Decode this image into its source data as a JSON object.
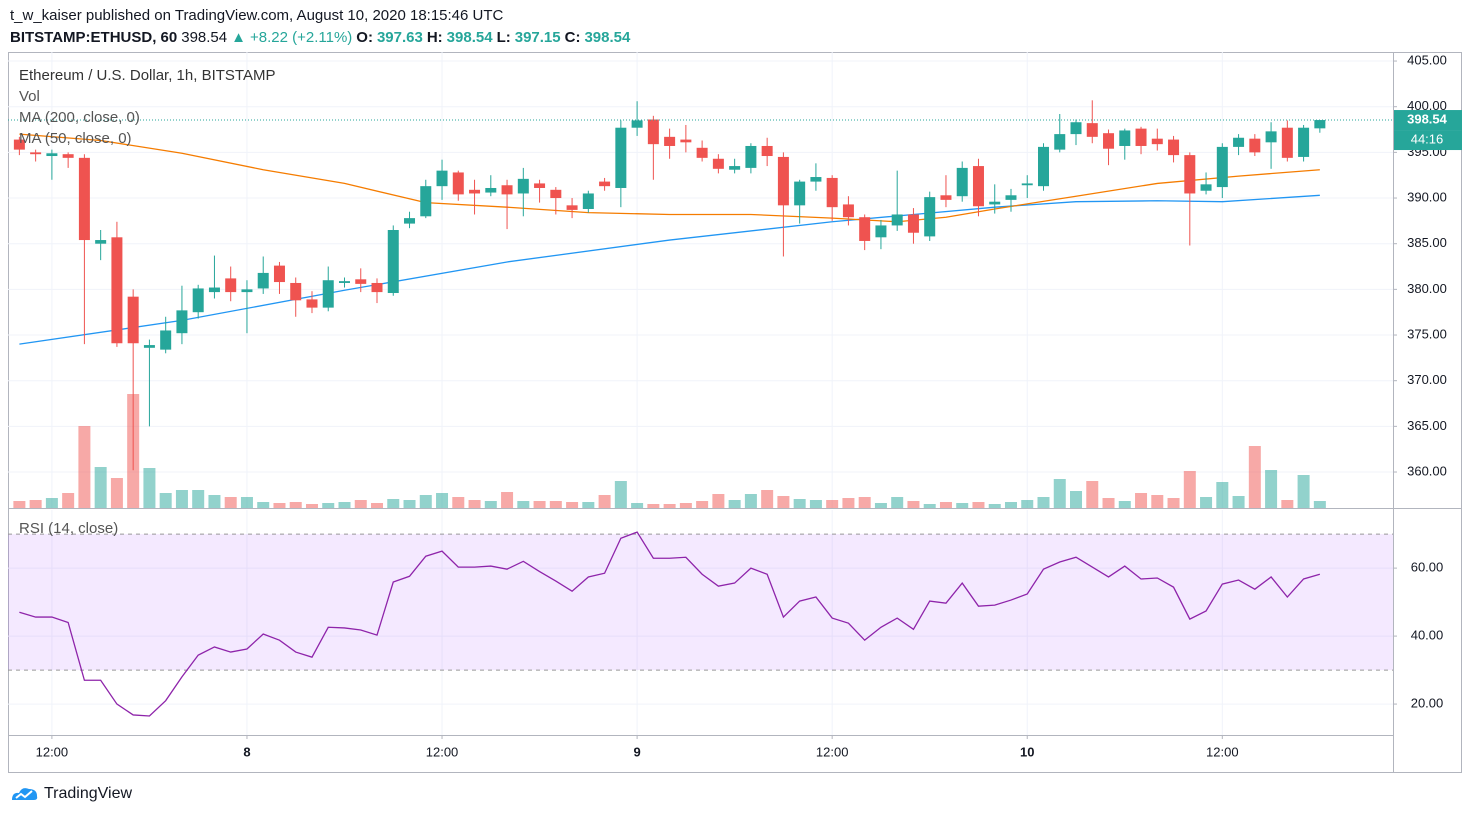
{
  "header": {
    "publisher": "t_w_kaiser published on TradingView.com, August 10, 2020 18:15:46 UTC",
    "symbol": "BITSTAMP:ETHUSD, 60",
    "change": "+8.22 (+2.11%)",
    "open_label": "O:",
    "high_label": "H:",
    "low_label": "L:",
    "close_label": "C:"
  },
  "chart_data": {
    "type": "candlestick",
    "title": "Ethereum / U.S. Dollar, 1h, BITSTAMP",
    "volume_label": "Vol",
    "countdown": "44:16",
    "up_color": "#26a69a",
    "down_color": "#ef5350",
    "open": [
      396.4,
      395.0,
      394.6,
      394.8,
      394.4,
      385.0,
      385.7,
      379.2,
      373.6,
      373.4,
      375.2,
      377.5,
      379.7,
      381.2,
      379.7,
      380.1,
      382.6,
      380.7,
      378.9,
      378.0,
      380.7,
      381.1,
      380.7,
      379.6,
      387.2,
      388.0,
      391.3,
      392.8,
      390.9,
      390.6,
      391.4,
      390.5,
      391.6,
      390.9,
      389.2,
      388.8,
      391.8,
      391.1,
      397.7,
      398.6,
      396.7,
      396.4,
      395.5,
      394.3,
      393.1,
      393.3,
      395.7,
      394.5,
      389.2,
      391.8,
      392.2,
      389.3,
      387.9,
      385.7,
      387.0,
      388.2,
      385.8,
      390.3,
      390.2,
      393.5,
      389.3,
      389.8,
      391.4,
      391.3,
      395.3,
      397.0,
      398.2,
      397.1,
      395.7,
      397.6,
      396.5,
      396.4,
      394.7,
      390.8,
      391.2,
      395.6,
      396.5,
      396.1,
      397.7,
      394.5,
      397.63
    ],
    "high": [
      396.7,
      395.3,
      395.3,
      395.0,
      394.8,
      386.5,
      387.4,
      380.0,
      374.5,
      377.0,
      380.4,
      380.5,
      383.7,
      382.5,
      381.0,
      383.6,
      383.0,
      381.3,
      379.8,
      382.5,
      381.3,
      382.3,
      381.2,
      387.0,
      388.5,
      392.0,
      394.2,
      393.0,
      392.0,
      392.5,
      392.0,
      393.3,
      392.0,
      391.2,
      390.0,
      390.8,
      392.2,
      398.5,
      400.6,
      399.0,
      397.6,
      398.0,
      396.3,
      394.8,
      394.3,
      396.0,
      396.6,
      395.0,
      392.0,
      393.8,
      392.5,
      390.2,
      388.2,
      387.6,
      393.0,
      388.9,
      390.7,
      392.5,
      394.0,
      394.3,
      391.5,
      391.0,
      392.5,
      396.0,
      399.2,
      398.6,
      400.7,
      397.5,
      397.6,
      397.8,
      397.6,
      396.8,
      395.0,
      392.8,
      396.0,
      397.0,
      397.0,
      398.3,
      398.5,
      398.0,
      398.54
    ],
    "low": [
      394.7,
      394.0,
      392.0,
      393.3,
      374.0,
      383.2,
      373.7,
      360.2,
      365.0,
      373.0,
      374.0,
      376.8,
      379.0,
      378.7,
      375.2,
      379.5,
      379.5,
      377.0,
      377.4,
      377.6,
      380.2,
      379.7,
      378.5,
      379.3,
      386.7,
      387.8,
      389.8,
      389.7,
      388.2,
      390.2,
      386.6,
      388.0,
      389.5,
      388.2,
      387.8,
      388.4,
      390.8,
      389.0,
      396.8,
      392.0,
      394.3,
      395.0,
      394.0,
      392.7,
      392.7,
      392.7,
      393.5,
      383.6,
      387.2,
      390.8,
      387.5,
      387.0,
      384.3,
      384.4,
      386.4,
      385.0,
      385.3,
      389.0,
      389.6,
      388.0,
      388.3,
      388.5,
      390.0,
      390.8,
      395.0,
      395.8,
      396.0,
      393.6,
      394.2,
      394.8,
      395.2,
      393.9,
      384.8,
      390.4,
      390.0,
      394.7,
      394.6,
      393.2,
      394.0,
      394.0,
      397.15
    ],
    "close": [
      395.3,
      394.8,
      394.9,
      394.4,
      385.4,
      385.4,
      374.1,
      374.1,
      373.9,
      375.5,
      377.7,
      380.1,
      380.2,
      379.7,
      380.0,
      381.8,
      380.8,
      378.8,
      378.0,
      381.0,
      380.9,
      380.6,
      379.7,
      386.5,
      387.8,
      391.3,
      393.0,
      390.4,
      390.5,
      391.1,
      390.4,
      392.1,
      391.1,
      390.0,
      388.7,
      390.5,
      391.3,
      397.7,
      398.5,
      395.9,
      395.7,
      396.1,
      394.4,
      393.2,
      393.5,
      395.7,
      394.6,
      389.2,
      391.8,
      392.3,
      389.0,
      387.9,
      385.3,
      387.0,
      388.2,
      386.2,
      390.1,
      389.8,
      393.3,
      389.1,
      389.6,
      390.3,
      391.6,
      395.6,
      397.0,
      398.3,
      396.7,
      395.4,
      397.4,
      395.7,
      395.9,
      394.7,
      390.5,
      391.5,
      395.6,
      396.6,
      395.0,
      397.3,
      394.4,
      397.7,
      398.54
    ],
    "volume": [
      7,
      8,
      10,
      15,
      82,
      41,
      30,
      114,
      40,
      15,
      18,
      18,
      13,
      11,
      11,
      6,
      5,
      6,
      4,
      5,
      6,
      8,
      5,
      9,
      8,
      13,
      15,
      11,
      8,
      7,
      16,
      7,
      7,
      7,
      6,
      6,
      13,
      27,
      5,
      4,
      4,
      5,
      7,
      14,
      8,
      14,
      18,
      12,
      9,
      8,
      8,
      10,
      11,
      5,
      11,
      7,
      4,
      6,
      5,
      6,
      4,
      6,
      8,
      11,
      29,
      17,
      27,
      10,
      7,
      15,
      13,
      10,
      37,
      11,
      26,
      12,
      62,
      38,
      8,
      33,
      7
    ],
    "series": [
      {
        "name": "MA (200, close, 0)",
        "color": "#2196f3",
        "x": [
          0,
          10,
          20,
          30,
          40,
          50,
          55,
          60,
          65,
          70,
          74,
          80
        ],
        "values": [
          374.0,
          376.6,
          379.9,
          383.0,
          385.4,
          387.4,
          388.2,
          389.0,
          389.6,
          389.7,
          389.6,
          390.3
        ]
      },
      {
        "name": "MA (50, close, 0)",
        "color": "#f57c00",
        "x": [
          0,
          5,
          10,
          15,
          20,
          25,
          30,
          35,
          40,
          45,
          50,
          54,
          57,
          60,
          65,
          70,
          75,
          80
        ],
        "values": [
          397.0,
          396.3,
          394.9,
          393.1,
          391.6,
          389.5,
          389.0,
          388.4,
          388.2,
          388.2,
          387.8,
          387.4,
          387.9,
          388.8,
          390.2,
          391.6,
          392.4,
          393.1
        ]
      }
    ],
    "ylim": [
      356.06,
      405.99
    ],
    "yticks": [
      {
        "value": 360,
        "label": "360.00"
      },
      {
        "value": 365,
        "label": "365.00"
      },
      {
        "value": 370,
        "label": "370.00"
      },
      {
        "value": 375,
        "label": "375.00"
      },
      {
        "value": 380,
        "label": "380.00"
      },
      {
        "value": 385,
        "label": "385.00"
      },
      {
        "value": 390,
        "label": "390.00"
      },
      {
        "value": 395,
        "label": "395.00"
      },
      {
        "value": 400,
        "label": "400.00"
      },
      {
        "value": 405,
        "label": "405.00"
      }
    ],
    "xlim": [
      -0.7,
      84.5
    ],
    "xticks": [
      {
        "value": 2,
        "label": "12:00"
      },
      {
        "value": 14,
        "label": "8"
      },
      {
        "value": 26,
        "label": "12:00"
      },
      {
        "value": 38,
        "label": "9"
      },
      {
        "value": 50,
        "label": "12:00"
      },
      {
        "value": 62,
        "label": "10"
      },
      {
        "value": 74,
        "label": "12:00"
      }
    ],
    "grid": true
  },
  "rsi": {
    "type": "line",
    "title": "RSI (14, close)",
    "color": "#8e24aa",
    "bands": [
      30,
      70
    ],
    "values": [
      47,
      45.6,
      45.6,
      44,
      27,
      27,
      20,
      16.8,
      16.5,
      21,
      28,
      34.4,
      36.8,
      35.3,
      36.2,
      40.6,
      38.8,
      35.3,
      33.8,
      42.6,
      42.4,
      41.8,
      40.3,
      55.9,
      57.6,
      63.5,
      65,
      60.3,
      60.3,
      60.6,
      59.7,
      62,
      59,
      56.2,
      53.2,
      57.4,
      58.5,
      68.8,
      70.6,
      62.9,
      62.9,
      63.2,
      58.2,
      54.7,
      55.6,
      60,
      58.2,
      45.6,
      50.3,
      51.5,
      45.3,
      43.8,
      38.8,
      42.6,
      45.3,
      42,
      50.3,
      49.7,
      55.6,
      48.8,
      49.1,
      50.6,
      52.4,
      59.7,
      61.8,
      63.2,
      60.3,
      57.4,
      60.6,
      56.8,
      57.1,
      54.4,
      45,
      47.4,
      55.3,
      56.5,
      53.8,
      57.4,
      51.5,
      56.8,
      58.2
    ],
    "ylim": [
      10.9,
      77.1
    ],
    "yticks": [
      {
        "value": 20,
        "label": "20.00"
      },
      {
        "value": 40,
        "label": "40.00"
      },
      {
        "value": 60,
        "label": "60.00"
      }
    ]
  },
  "footer": {
    "brand": "TradingView"
  }
}
